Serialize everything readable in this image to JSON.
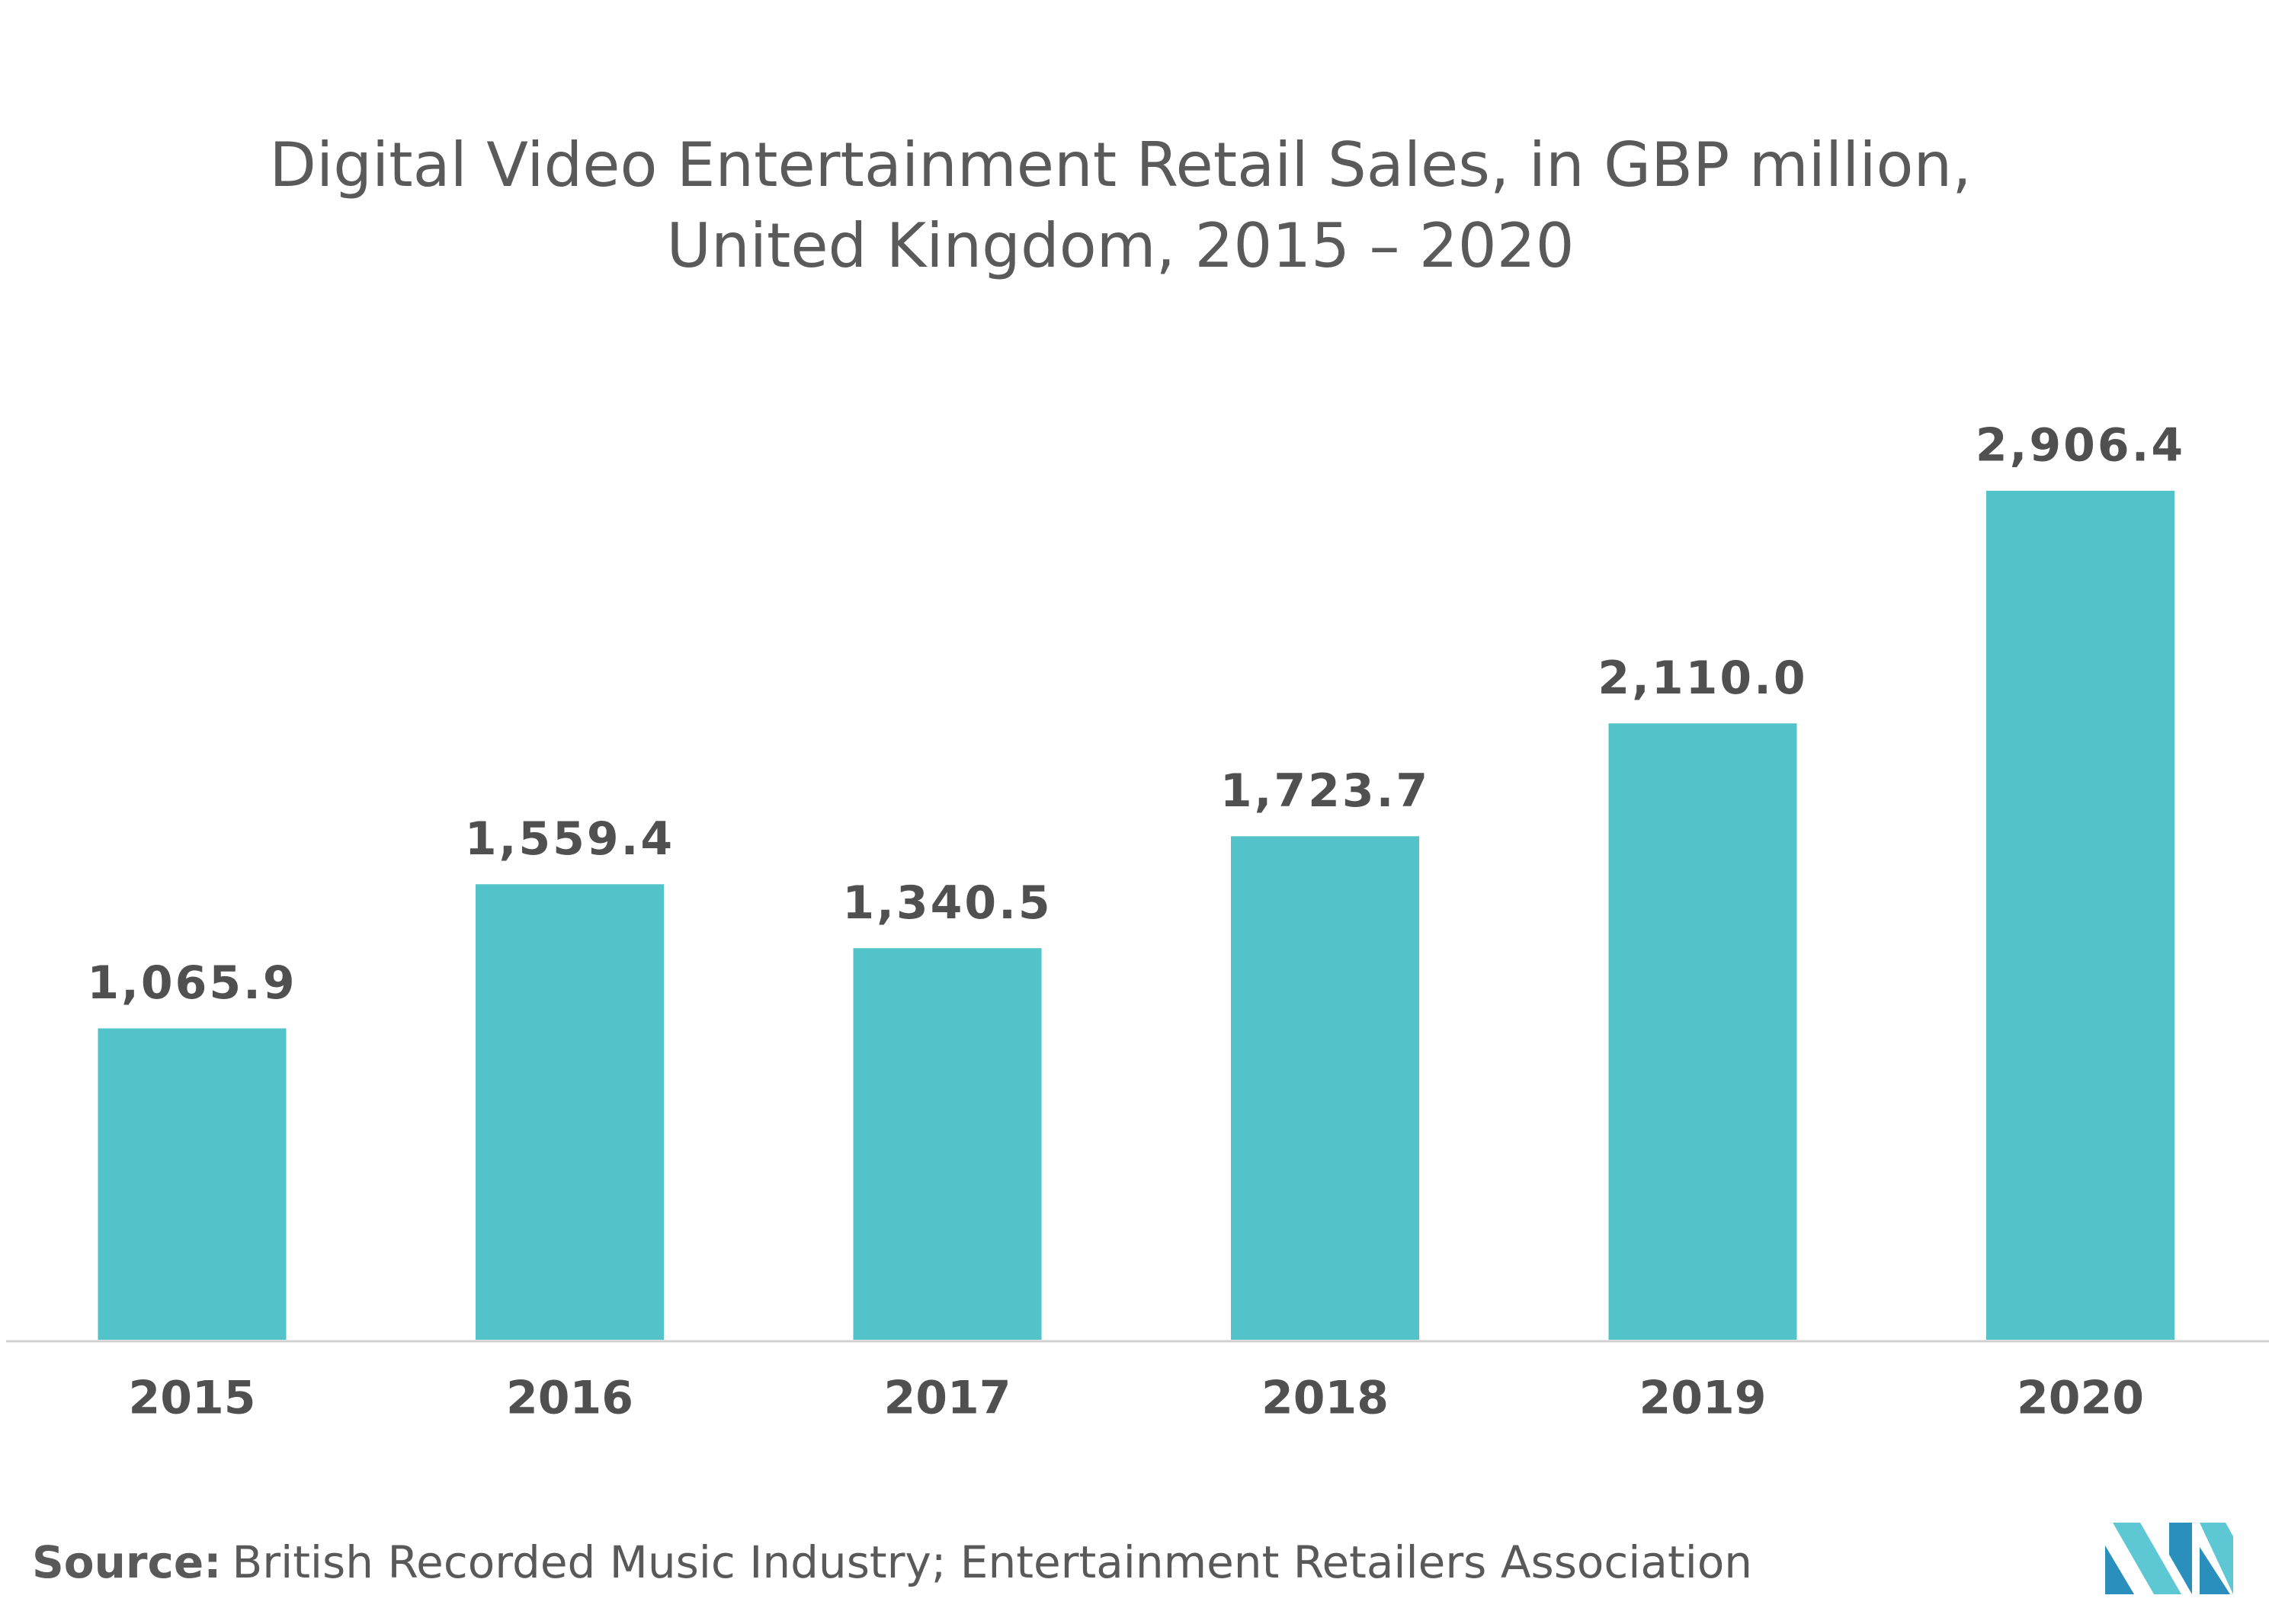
{
  "chart_data": {
    "type": "bar",
    "title": [
      "Digital Video Entertainment Retail Sales, in GBP million,",
      "United Kingdom, 2015 – 2020"
    ],
    "categories": [
      "2015",
      "2016",
      "2017",
      "2018",
      "2019",
      "2020"
    ],
    "values": [
      1065.9,
      1559.4,
      1340.5,
      1723.7,
      2110.0,
      2906.4
    ],
    "value_labels": [
      "1,065.9",
      "1,559.4",
      "1,340.5",
      "1,723.7",
      "2,110.0",
      "2,906.4"
    ],
    "color": "#52c3c9",
    "source_label": "Source:",
    "source": "British Recorded Music Industry; Entertainment Retailers Association"
  }
}
